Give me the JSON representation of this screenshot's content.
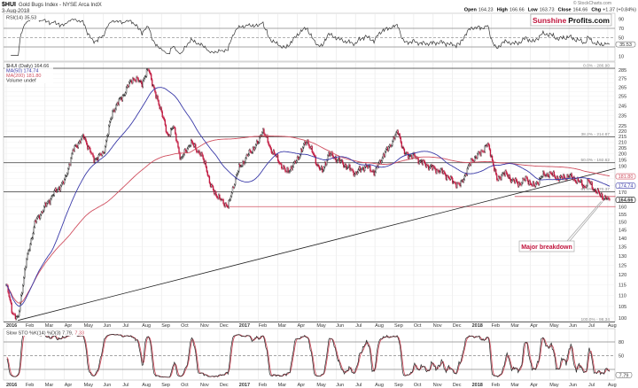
{
  "header": {
    "symbol": "$HUI",
    "name": "Gold Bugs Index - NYSE Arca IndX",
    "date": "3-Aug-2018",
    "credit": "© StockCharts.com",
    "open_label": "Open",
    "open": "164.23",
    "high_label": "High",
    "high": "166.66",
    "low_label": "Low",
    "low": "163.73",
    "close_label": "Close",
    "close": "164.66",
    "chg_label": "Chg",
    "chg": "+1.37 (+0.84%)"
  },
  "logo": {
    "part1": "Sunshine",
    "part2": "Profits.com",
    "color1": "#c0143c"
  },
  "rsi": {
    "legend": "RSI(14) 35.53",
    "value_tag": "35.53",
    "ticks": [
      90,
      70,
      50,
      30,
      10
    ],
    "levels": [
      70,
      50,
      30
    ]
  },
  "main": {
    "legend_price": "$HUI (Daily) 164.66",
    "legend_ma50": "MA(50) 174.74",
    "legend_ma200": "MA(200) 181.80",
    "legend_volume": "Volume undef",
    "tag_ma200": "181.80",
    "tag_ma50": "174.74",
    "tag_price": "164.66",
    "annotation": "Major breakdown",
    "colors": {
      "up": "#000000",
      "down": "#c0143c",
      "ma50": "#3a3aa8",
      "ma200": "#d05060",
      "annotation": "#c0143c"
    }
  },
  "stoch": {
    "legend": "Slow STO %K(14) %D(3) 7.79,",
    "legend_d": "7.33",
    "value_tag": "7.79",
    "ticks": [
      80,
      50,
      20
    ]
  },
  "chart_data": {
    "type": "candlestick",
    "title": "$HUI Gold Bugs Index - NYSE Arca IndX",
    "y_scale": "log",
    "ylim": [
      97,
      292
    ],
    "y_tick_step": 5,
    "x_months": [
      "2016",
      "Feb",
      "Mar",
      "Apr",
      "May",
      "Jun",
      "Jul",
      "Aug",
      "Sep",
      "Oct",
      "Nov",
      "Dec",
      "2017",
      "Feb",
      "Mar",
      "Apr",
      "May",
      "Jun",
      "Jul",
      "Aug",
      "Sep",
      "Oct",
      "Nov",
      "Dec",
      "2018",
      "Feb",
      "Mar",
      "Apr",
      "May",
      "Jun",
      "Jul",
      "Aug"
    ],
    "close_series_months_since_jan2016": [
      [
        0,
        115
      ],
      [
        0.3,
        103
      ],
      [
        0.6,
        99
      ],
      [
        1,
        125
      ],
      [
        1.5,
        150
      ],
      [
        2,
        160
      ],
      [
        2.5,
        170
      ],
      [
        3,
        178
      ],
      [
        3.5,
        205
      ],
      [
        4,
        215
      ],
      [
        4.5,
        195
      ],
      [
        5,
        200
      ],
      [
        5.5,
        240
      ],
      [
        6,
        255
      ],
      [
        6.5,
        275
      ],
      [
        7,
        270
      ],
      [
        7.35,
        286
      ],
      [
        7.7,
        255
      ],
      [
        8,
        240
      ],
      [
        8.3,
        215
      ],
      [
        8.6,
        225
      ],
      [
        9,
        195
      ],
      [
        9.5,
        210
      ],
      [
        10,
        200
      ],
      [
        10.3,
        190
      ],
      [
        10.5,
        175
      ],
      [
        11,
        165
      ],
      [
        11.45,
        160
      ],
      [
        11.8,
        180
      ],
      [
        12,
        188
      ],
      [
        12.5,
        200
      ],
      [
        13,
        210
      ],
      [
        13.2,
        222
      ],
      [
        13.6,
        205
      ],
      [
        14,
        195
      ],
      [
        14.4,
        185
      ],
      [
        14.8,
        190
      ],
      [
        15.2,
        202
      ],
      [
        15.5,
        212
      ],
      [
        16,
        192
      ],
      [
        16.3,
        185
      ],
      [
        16.6,
        200
      ],
      [
        17,
        196
      ],
      [
        17.5,
        190
      ],
      [
        18,
        184
      ],
      [
        18.5,
        190
      ],
      [
        19,
        185
      ],
      [
        19.4,
        198
      ],
      [
        19.7,
        205
      ],
      [
        20.2,
        220
      ],
      [
        20.5,
        200
      ],
      [
        21,
        198
      ],
      [
        21.5,
        192
      ],
      [
        22,
        188
      ],
      [
        22.5,
        185
      ],
      [
        23,
        178
      ],
      [
        23.4,
        175
      ],
      [
        24,
        195
      ],
      [
        24.4,
        200
      ],
      [
        24.8,
        208
      ],
      [
        25,
        198
      ],
      [
        25.3,
        178
      ],
      [
        25.6,
        185
      ],
      [
        26,
        180
      ],
      [
        26.4,
        176
      ],
      [
        26.8,
        180
      ],
      [
        27.2,
        174
      ],
      [
        27.6,
        182
      ],
      [
        28,
        184
      ],
      [
        28.5,
        180
      ],
      [
        29,
        182
      ],
      [
        29.5,
        178
      ],
      [
        29.8,
        174
      ],
      [
        30,
        178
      ],
      [
        30.3,
        172
      ],
      [
        30.6,
        168
      ],
      [
        30.85,
        166
      ],
      [
        31.1,
        164.66
      ]
    ],
    "fibonacci": [
      {
        "label": "0.0% - 286.90",
        "value": 286.9
      },
      {
        "label": "38.2% - 214.87",
        "value": 214.87
      },
      {
        "label": "50.0% - 192.62",
        "value": 192.62
      },
      {
        "label": "61.8% - 170.37",
        "value": 170.37
      },
      {
        "label": "100.0% - 98.34",
        "value": 98.34
      }
    ],
    "trendline": {
      "from": [
        0.6,
        99
      ],
      "to": [
        31.4,
        188
      ]
    },
    "support_lines": [
      {
        "value": 167,
        "from": 26.2,
        "to": 31.4
      },
      {
        "value": 160,
        "from": 11.4,
        "to": 31.4
      }
    ],
    "annotation_target": [
      30.7,
      166
    ]
  }
}
